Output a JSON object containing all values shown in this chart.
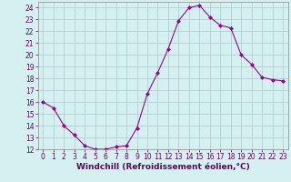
{
  "x": [
    0,
    1,
    2,
    3,
    4,
    5,
    6,
    7,
    8,
    9,
    10,
    11,
    12,
    13,
    14,
    15,
    16,
    17,
    18,
    19,
    20,
    21,
    22,
    23
  ],
  "y": [
    16.0,
    15.5,
    14.0,
    13.2,
    12.3,
    12.0,
    12.0,
    12.2,
    12.3,
    13.8,
    16.7,
    18.5,
    20.5,
    22.9,
    24.0,
    24.2,
    23.2,
    22.5,
    22.3,
    20.0,
    19.2,
    18.1,
    17.9,
    17.8
  ],
  "line_color": "#990099",
  "marker": "D",
  "marker_size": 2.0,
  "background_color": "#d4f0f0",
  "grid_color": "#aacccc",
  "ylim": [
    12,
    24.5
  ],
  "xlim": [
    -0.5,
    23.5
  ],
  "yticks": [
    12,
    13,
    14,
    15,
    16,
    17,
    18,
    19,
    20,
    21,
    22,
    23,
    24
  ],
  "xticks": [
    0,
    1,
    2,
    3,
    4,
    5,
    6,
    7,
    8,
    9,
    10,
    11,
    12,
    13,
    14,
    15,
    16,
    17,
    18,
    19,
    20,
    21,
    22,
    23
  ],
  "xlabel": "Windchill (Refroidissement éolien,°C)",
  "xlabel_fontsize": 6.5,
  "tick_fontsize": 5.5,
  "axis_color": "#660066",
  "spine_color": "#888888"
}
